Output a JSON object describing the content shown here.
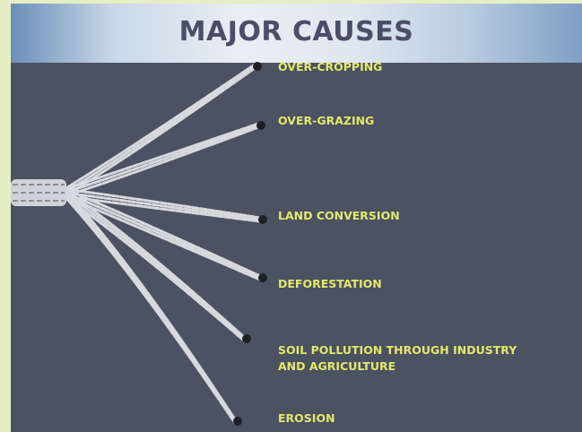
{
  "title": "MAJOR CAUSES",
  "causes": [
    {
      "lines": [
        "OVER-CROPPING"
      ]
    },
    {
      "lines": [
        "OVER-GRAZING"
      ]
    },
    {
      "lines": [
        "LAND CONVERSION"
      ]
    },
    {
      "lines": [
        "DEFORESTATION"
      ]
    },
    {
      "lines": [
        "SOIL POLLUTION THROUGH INDUSTRY",
        "AND AGRICULTURE"
      ]
    },
    {
      "lines": [
        "EROSION"
      ]
    }
  ]
}
